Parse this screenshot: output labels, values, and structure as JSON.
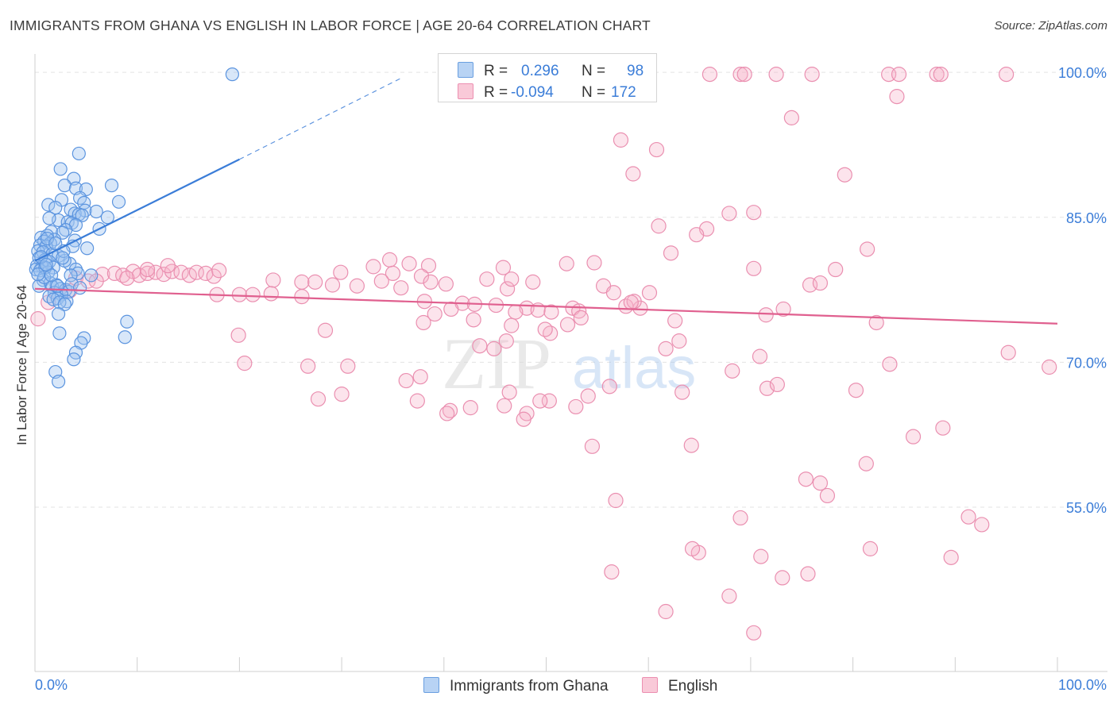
{
  "title": "IMMIGRANTS FROM GHANA VS ENGLISH IN LABOR FORCE | AGE 20-64 CORRELATION CHART",
  "source": "Source: ZipAtlas.com",
  "watermark": {
    "zip": "ZIP",
    "atlas": "atlas"
  },
  "legend": {
    "rows": [
      {
        "r_label": "R =",
        "r_value": "0.296",
        "n_label": "N =",
        "n_value": "98",
        "color": "#9ec2ef"
      },
      {
        "r_label": "R =",
        "r_value": "-0.094",
        "n_label": "N =",
        "n_value": "172",
        "color": "#f5b3c9"
      }
    ]
  },
  "bottom_legend": [
    {
      "label": "Immigrants from Ghana",
      "color": "#9ec2ef"
    },
    {
      "label": "English",
      "color": "#f5b3c9"
    }
  ],
  "chart_data": {
    "type": "scatter",
    "title": "IMMIGRANTS FROM GHANA VS ENGLISH IN LABOR FORCE | AGE 20-64 CORRELATION CHART",
    "xlabel": "",
    "ylabel": "In Labor Force | Age 20-64",
    "xlim": [
      0,
      100
    ],
    "ylim": [
      38,
      101
    ],
    "x_tick_labels": [
      "0.0%",
      "100.0%"
    ],
    "y_tick_labels": [
      {
        "value": 100,
        "label": "100.0%"
      },
      {
        "value": 85,
        "label": "85.0%"
      },
      {
        "value": 70,
        "label": "70.0%"
      },
      {
        "value": 55,
        "label": "55.0%"
      }
    ],
    "colors": {
      "ghana": "#3b7dd8",
      "ghana_fill": "#9ec2ef",
      "english": "#e0608f",
      "english_fill": "#f5b3c9",
      "tick_label": "#3b7dd8"
    },
    "series": [
      {
        "name": "Immigrants from Ghana",
        "trend": {
          "x0": 0,
          "y0": 80.5,
          "x1": 20,
          "y1": 91.0,
          "dash_to_x": 36,
          "dash_to_y": 99.5
        },
        "points": [
          [
            19.3,
            99.8
          ],
          [
            4.3,
            91.6
          ],
          [
            2.5,
            90.0
          ],
          [
            3.8,
            89.0
          ],
          [
            2.9,
            88.3
          ],
          [
            7.5,
            88.3
          ],
          [
            4.0,
            88.0
          ],
          [
            5.0,
            87.9
          ],
          [
            4.4,
            87.0
          ],
          [
            2.6,
            86.8
          ],
          [
            8.2,
            86.6
          ],
          [
            4.8,
            86.5
          ],
          [
            1.3,
            86.3
          ],
          [
            2.0,
            86.0
          ],
          [
            3.5,
            85.8
          ],
          [
            4.9,
            85.7
          ],
          [
            6.0,
            85.6
          ],
          [
            3.9,
            85.4
          ],
          [
            4.3,
            85.3
          ],
          [
            4.6,
            85.2
          ],
          [
            7.1,
            85.0
          ],
          [
            2.3,
            84.7
          ],
          [
            3.2,
            84.5
          ],
          [
            3.6,
            84.4
          ],
          [
            4.0,
            84.2
          ],
          [
            6.3,
            83.8
          ],
          [
            3.0,
            83.7
          ],
          [
            1.6,
            83.5
          ],
          [
            2.7,
            83.4
          ],
          [
            1.2,
            83.1
          ],
          [
            0.6,
            82.9
          ],
          [
            1.9,
            82.7
          ],
          [
            0.9,
            82.5
          ],
          [
            1.5,
            82.3
          ],
          [
            3.9,
            82.6
          ],
          [
            0.5,
            82.1
          ],
          [
            1.1,
            82.0
          ],
          [
            5.1,
            81.8
          ],
          [
            0.3,
            81.5
          ],
          [
            0.8,
            81.4
          ],
          [
            1.7,
            81.2
          ],
          [
            2.3,
            81.0
          ],
          [
            0.4,
            80.8
          ],
          [
            1.0,
            80.6
          ],
          [
            1.4,
            80.4
          ],
          [
            3.4,
            80.2
          ],
          [
            0.2,
            80.0
          ],
          [
            0.7,
            79.9
          ],
          [
            1.8,
            79.8
          ],
          [
            0.1,
            79.6
          ],
          [
            0.5,
            79.5
          ],
          [
            1.3,
            79.3
          ],
          [
            4.0,
            79.6
          ],
          [
            4.2,
            79.2
          ],
          [
            3.5,
            79.0
          ],
          [
            0.8,
            78.5
          ],
          [
            1.5,
            78.2
          ],
          [
            2.1,
            78.0
          ],
          [
            0.4,
            77.9
          ],
          [
            1.7,
            77.8
          ],
          [
            2.5,
            77.6
          ],
          [
            3.0,
            77.5
          ],
          [
            3.3,
            77.3
          ],
          [
            1.9,
            77.2
          ],
          [
            2.6,
            77.0
          ],
          [
            1.4,
            76.8
          ],
          [
            2.2,
            76.6
          ],
          [
            3.1,
            76.3
          ],
          [
            1.8,
            76.5
          ],
          [
            2.4,
            76.2
          ],
          [
            2.9,
            76.0
          ],
          [
            2.3,
            75.0
          ],
          [
            9.0,
            74.2
          ],
          [
            2.4,
            73.0
          ],
          [
            8.8,
            72.6
          ],
          [
            4.8,
            72.5
          ],
          [
            4.5,
            72.0
          ],
          [
            4.0,
            71.0
          ],
          [
            3.8,
            70.3
          ],
          [
            2.0,
            69.0
          ],
          [
            2.3,
            68.0
          ],
          [
            1.0,
            79.8
          ],
          [
            0.6,
            80.9
          ],
          [
            1.2,
            82.8
          ],
          [
            2.9,
            80.5
          ],
          [
            3.7,
            82.0
          ],
          [
            5.5,
            79.0
          ],
          [
            2.8,
            81.5
          ],
          [
            0.9,
            78.8
          ],
          [
            1.6,
            79.0
          ],
          [
            2.2,
            77.9
          ],
          [
            3.6,
            78.1
          ],
          [
            4.4,
            77.7
          ],
          [
            1.1,
            80.1
          ],
          [
            2.0,
            82.3
          ],
          [
            0.3,
            79.1
          ],
          [
            1.4,
            84.9
          ],
          [
            2.7,
            80.8
          ]
        ]
      },
      {
        "name": "English",
        "trend": {
          "x0": 0,
          "y0": 77.6,
          "x1": 100,
          "y1": 74.0
        },
        "points": [
          [
            66.0,
            99.8
          ],
          [
            69.0,
            99.8
          ],
          [
            69.4,
            99.8
          ],
          [
            72.5,
            99.8
          ],
          [
            76.0,
            99.8
          ],
          [
            83.5,
            99.8
          ],
          [
            84.5,
            99.8
          ],
          [
            88.2,
            99.8
          ],
          [
            88.6,
            99.8
          ],
          [
            95.0,
            99.8
          ],
          [
            84.3,
            97.5
          ],
          [
            74.0,
            95.3
          ],
          [
            57.3,
            93.0
          ],
          [
            60.8,
            92.0
          ],
          [
            58.5,
            89.5
          ],
          [
            79.2,
            89.4
          ],
          [
            67.9,
            85.4
          ],
          [
            70.3,
            85.5
          ],
          [
            61.0,
            84.1
          ],
          [
            65.7,
            83.8
          ],
          [
            64.7,
            83.2
          ],
          [
            62.2,
            81.3
          ],
          [
            81.4,
            81.7
          ],
          [
            54.7,
            80.3
          ],
          [
            52.0,
            80.2
          ],
          [
            34.7,
            80.6
          ],
          [
            36.6,
            80.2
          ],
          [
            38.5,
            80.0
          ],
          [
            33.1,
            79.9
          ],
          [
            45.8,
            79.8
          ],
          [
            70.3,
            79.7
          ],
          [
            78.3,
            79.6
          ],
          [
            29.9,
            79.3
          ],
          [
            35.0,
            79.2
          ],
          [
            37.8,
            78.9
          ],
          [
            44.2,
            78.6
          ],
          [
            33.9,
            78.4
          ],
          [
            38.7,
            78.3
          ],
          [
            40.2,
            78.1
          ],
          [
            23.3,
            78.5
          ],
          [
            26.1,
            78.3
          ],
          [
            27.4,
            78.3
          ],
          [
            29.1,
            78.0
          ],
          [
            31.5,
            77.9
          ],
          [
            35.8,
            77.7
          ],
          [
            46.2,
            77.6
          ],
          [
            46.6,
            78.6
          ],
          [
            75.8,
            78.0
          ],
          [
            76.8,
            78.2
          ],
          [
            48.7,
            78.3
          ],
          [
            55.6,
            77.9
          ],
          [
            56.6,
            77.2
          ],
          [
            60.1,
            77.2
          ],
          [
            17.8,
            77.0
          ],
          [
            20.0,
            77.0
          ],
          [
            21.3,
            77.0
          ],
          [
            23.1,
            77.1
          ],
          [
            26.1,
            76.8
          ],
          [
            38.1,
            76.3
          ],
          [
            41.8,
            76.1
          ],
          [
            45.1,
            75.9
          ],
          [
            48.1,
            75.6
          ],
          [
            49.2,
            75.4
          ],
          [
            43.0,
            76.0
          ],
          [
            39.1,
            75.0
          ],
          [
            40.7,
            75.5
          ],
          [
            52.6,
            75.6
          ],
          [
            57.8,
            75.8
          ],
          [
            59.2,
            75.6
          ],
          [
            73.2,
            75.5
          ],
          [
            47.0,
            75.2
          ],
          [
            58.6,
            76.3
          ],
          [
            58.3,
            76.2
          ],
          [
            50.5,
            75.2
          ],
          [
            53.2,
            75.3
          ],
          [
            42.9,
            74.4
          ],
          [
            46.6,
            73.8
          ],
          [
            52.1,
            73.9
          ],
          [
            53.4,
            74.6
          ],
          [
            62.6,
            74.3
          ],
          [
            71.5,
            74.9
          ],
          [
            82.3,
            74.1
          ],
          [
            38.0,
            74.1
          ],
          [
            28.4,
            73.3
          ],
          [
            43.5,
            71.7
          ],
          [
            50.4,
            73.0
          ],
          [
            49.9,
            73.4
          ],
          [
            46.1,
            72.2
          ],
          [
            44.9,
            71.4
          ],
          [
            63.0,
            72.2
          ],
          [
            61.7,
            71.4
          ],
          [
            70.9,
            70.6
          ],
          [
            71.6,
            67.3
          ],
          [
            80.3,
            67.1
          ],
          [
            83.6,
            69.8
          ],
          [
            95.2,
            71.0
          ],
          [
            99.2,
            69.5
          ],
          [
            68.2,
            69.1
          ],
          [
            72.6,
            67.7
          ],
          [
            63.3,
            66.9
          ],
          [
            56.2,
            67.5
          ],
          [
            54.1,
            66.5
          ],
          [
            50.3,
            66.0
          ],
          [
            52.9,
            65.4
          ],
          [
            48.1,
            64.7
          ],
          [
            47.8,
            64.1
          ],
          [
            45.9,
            65.5
          ],
          [
            40.6,
            65.0
          ],
          [
            37.4,
            66.0
          ],
          [
            36.3,
            68.1
          ],
          [
            37.7,
            68.5
          ],
          [
            40.3,
            64.7
          ],
          [
            42.6,
            65.3
          ],
          [
            46.4,
            66.9
          ],
          [
            49.4,
            66.0
          ],
          [
            27.7,
            66.2
          ],
          [
            26.7,
            69.6
          ],
          [
            30.6,
            69.6
          ],
          [
            19.9,
            72.8
          ],
          [
            30.0,
            66.7
          ],
          [
            20.5,
            69.9
          ],
          [
            85.9,
            62.3
          ],
          [
            81.3,
            59.5
          ],
          [
            75.4,
            57.9
          ],
          [
            77.5,
            56.2
          ],
          [
            69.0,
            53.9
          ],
          [
            91.3,
            54.0
          ],
          [
            92.6,
            53.2
          ],
          [
            71.0,
            49.9
          ],
          [
            81.7,
            50.7
          ],
          [
            89.6,
            49.8
          ],
          [
            75.6,
            48.1
          ],
          [
            64.9,
            50.3
          ],
          [
            64.3,
            50.7
          ],
          [
            56.4,
            48.3
          ],
          [
            61.7,
            44.2
          ],
          [
            70.3,
            42.0
          ],
          [
            88.8,
            63.2
          ],
          [
            64.2,
            61.4
          ],
          [
            54.5,
            61.3
          ],
          [
            76.8,
            57.5
          ],
          [
            56.8,
            55.7
          ],
          [
            67.9,
            45.8
          ],
          [
            73.1,
            47.7
          ],
          [
            0.3,
            74.5
          ],
          [
            1.3,
            76.2
          ],
          [
            3.4,
            77.4
          ],
          [
            4.0,
            78.7
          ],
          [
            5.2,
            78.4
          ],
          [
            6.6,
            79.1
          ],
          [
            7.8,
            79.2
          ],
          [
            8.6,
            79.0
          ],
          [
            9.6,
            79.4
          ],
          [
            10.2,
            79.0
          ],
          [
            11.0,
            79.2
          ],
          [
            11.8,
            79.3
          ],
          [
            12.6,
            79.1
          ],
          [
            13.4,
            79.4
          ],
          [
            14.3,
            79.3
          ],
          [
            15.1,
            79.0
          ],
          [
            15.8,
            79.3
          ],
          [
            16.7,
            79.2
          ],
          [
            17.5,
            78.9
          ],
          [
            9.0,
            78.7
          ],
          [
            6.0,
            78.4
          ],
          [
            18.0,
            79.5
          ],
          [
            13.0,
            80.0
          ],
          [
            11.0,
            79.6
          ]
        ]
      }
    ]
  }
}
